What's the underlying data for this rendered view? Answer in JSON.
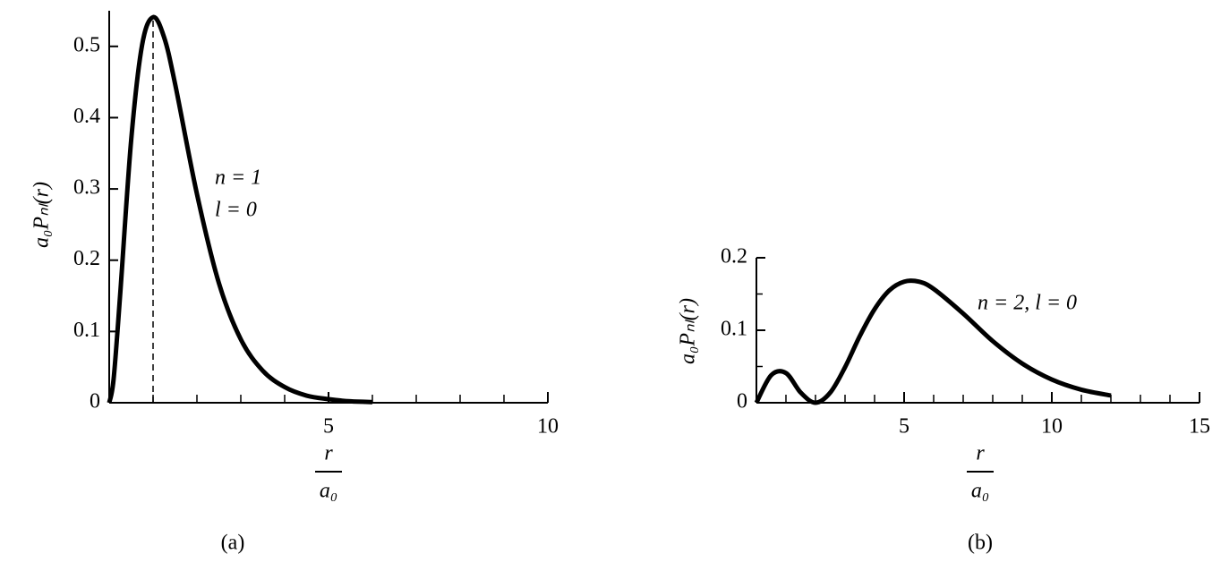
{
  "chart_data": [
    {
      "type": "line",
      "caption": "(a)",
      "y_label": "a₀Pₙₗ(r)",
      "x_label": {
        "numerator": "r",
        "denominator": "a₀"
      },
      "annotations": [
        "n = 1",
        "l = 0"
      ],
      "x": [
        0,
        0.1,
        0.25,
        0.5,
        0.75,
        1,
        1.25,
        1.5,
        2,
        2.5,
        3,
        3.5,
        4,
        4.5,
        5,
        5.5,
        6
      ],
      "values": [
        0,
        0.033,
        0.152,
        0.368,
        0.502,
        0.541,
        0.513,
        0.448,
        0.293,
        0.168,
        0.089,
        0.045,
        0.022,
        0.01,
        0.005,
        0.002,
        0.001
      ],
      "color": "#000000",
      "vline_x": 1,
      "xlim": [
        0,
        10
      ],
      "xticks": [
        5,
        10
      ],
      "xminorticks": [
        1,
        2,
        3,
        4,
        6,
        7,
        8,
        9
      ],
      "ylim": [
        0,
        0.55
      ],
      "yticks": [
        0,
        0.1,
        0.2,
        0.3,
        0.4,
        0.5
      ],
      "yminorticks": []
    },
    {
      "type": "line",
      "caption": "(b)",
      "y_label": "a₀Pₙₗ(r)",
      "x_label": {
        "numerator": "r",
        "denominator": "a₀"
      },
      "annotations": [
        "n = 2, l = 0"
      ],
      "x": [
        0,
        0.5,
        1,
        1.5,
        2,
        2.5,
        3,
        3.5,
        4,
        4.5,
        5,
        5.5,
        6,
        7,
        8,
        9,
        10,
        11,
        12
      ],
      "values": [
        0,
        0.038,
        0.041,
        0.014,
        0,
        0.014,
        0.049,
        0.092,
        0.129,
        0.155,
        0.167,
        0.167,
        0.157,
        0.123,
        0.085,
        0.054,
        0.032,
        0.018,
        0.01
      ],
      "color": "#000000",
      "xlim": [
        0,
        15
      ],
      "xticks": [
        5,
        10,
        15
      ],
      "xminorticks": [
        1,
        2,
        3,
        4,
        6,
        7,
        8,
        9,
        11,
        12,
        13,
        14
      ],
      "ylim": [
        0,
        0.2
      ],
      "yticks": [
        0,
        0.1,
        0.2
      ],
      "yminorticks": [
        0.05,
        0.15
      ]
    }
  ]
}
